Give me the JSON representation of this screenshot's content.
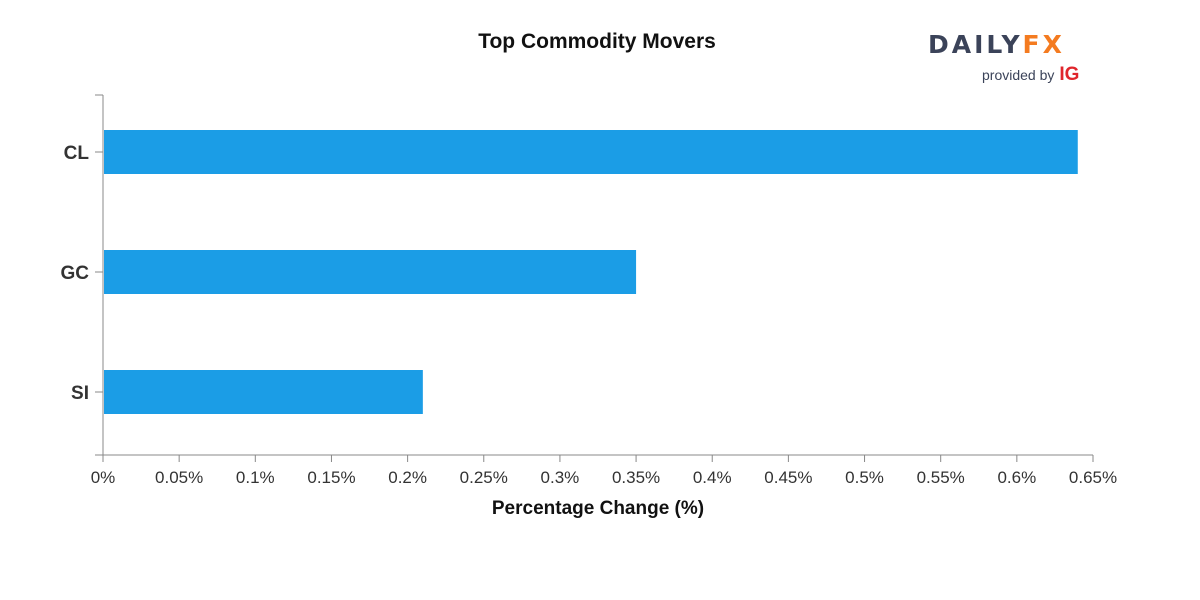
{
  "brand": {
    "logo_part1": "DAILY",
    "logo_part2": "FX",
    "provided_by": "provided by",
    "ig": "IG"
  },
  "chart_data": {
    "type": "bar",
    "orientation": "horizontal",
    "title": "Top Commodity Movers",
    "xlabel": "Percentage Change (%)",
    "ylabel": "",
    "categories": [
      "CL",
      "GC",
      "SI"
    ],
    "values": [
      0.64,
      0.35,
      0.21
    ],
    "xlim": [
      0,
      0.65
    ],
    "x_ticks": [
      "0%",
      "0.05%",
      "0.1%",
      "0.15%",
      "0.2%",
      "0.25%",
      "0.3%",
      "0.35%",
      "0.4%",
      "0.45%",
      "0.5%",
      "0.55%",
      "0.6%",
      "0.65%"
    ],
    "bar_color": "#1b9de6",
    "grid": false,
    "legend": "none"
  }
}
